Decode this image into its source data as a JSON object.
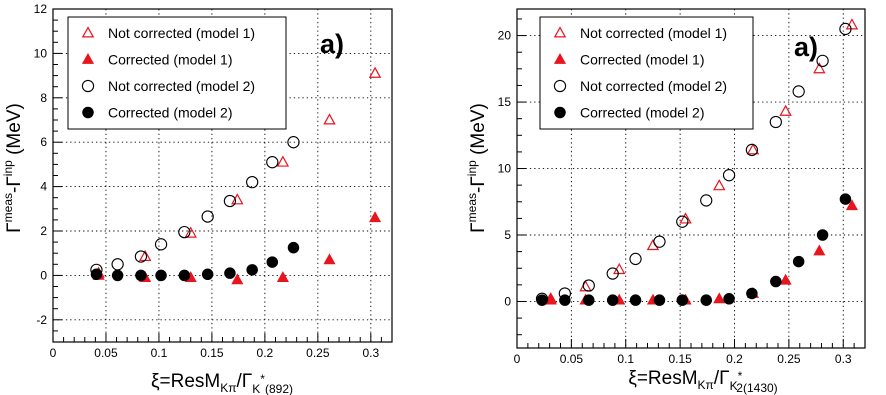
{
  "chart_data": [
    {
      "type": "scatter",
      "panel_label": "a)",
      "xlabel": {
        "main": "ξ=ResM",
        "sub1": "Kπ",
        "slash": "/Γ",
        "sub2": "K",
        "sup2": "*",
        "sub3": "(892)"
      },
      "ylabel": {
        "base": "Γ",
        "sup1": "meas",
        "dash": "-Γ",
        "sup2": "inp",
        "unit": " (MeV)"
      },
      "xlim": [
        0,
        0.32
      ],
      "ylim": [
        -3,
        12
      ],
      "xticks": [
        0,
        0.05,
        0.1,
        0.15,
        0.2,
        0.25,
        0.3
      ],
      "xtick_labels": [
        "0",
        "0.05",
        "0.1",
        "0.15",
        "0.2",
        "0.25",
        "0.3"
      ],
      "yticks": [
        -2,
        0,
        2,
        4,
        6,
        8,
        10,
        12
      ],
      "ytick_labels": [
        "-2",
        "0",
        "2",
        "4",
        "6",
        "8",
        "10",
        "12"
      ],
      "grid": true,
      "legend_position": "top-left",
      "series": [
        {
          "name": "Not corrected (model 1)",
          "marker": "open-triangle",
          "color": "#e8141e",
          "x": [
            0.043,
            0.087,
            0.13,
            0.174,
            0.217,
            0.261,
            0.304
          ],
          "y": [
            0.1,
            0.85,
            1.9,
            3.4,
            5.1,
            7.0,
            9.1
          ]
        },
        {
          "name": "Corrected (model 1)",
          "marker": "filled-triangle",
          "color": "#e8141e",
          "x": [
            0.043,
            0.087,
            0.13,
            0.174,
            0.217,
            0.261,
            0.304
          ],
          "y": [
            0.0,
            -0.1,
            -0.1,
            -0.2,
            -0.1,
            0.7,
            2.6
          ]
        },
        {
          "name": "Not corrected (model 2)",
          "marker": "open-circle",
          "color": "#000000",
          "x": [
            0.041,
            0.061,
            0.083,
            0.102,
            0.124,
            0.146,
            0.167,
            0.188,
            0.207,
            0.227
          ],
          "y": [
            0.25,
            0.5,
            0.85,
            1.4,
            1.95,
            2.65,
            3.35,
            4.2,
            5.1,
            6.0
          ]
        },
        {
          "name": "Corrected (model 2)",
          "marker": "filled-circle",
          "color": "#000000",
          "x": [
            0.041,
            0.061,
            0.083,
            0.102,
            0.124,
            0.146,
            0.167,
            0.188,
            0.207,
            0.227
          ],
          "y": [
            0.05,
            0.0,
            0.0,
            0.0,
            0.0,
            0.05,
            0.1,
            0.25,
            0.6,
            1.25
          ]
        }
      ]
    },
    {
      "type": "scatter",
      "panel_label": "a)",
      "xlabel": {
        "main": "ξ=ResM",
        "sub1": "Kπ",
        "slash": "/Γ",
        "sub2": "K",
        "sup2": "*",
        "sub2b": "2",
        "sub3": "(1430)"
      },
      "ylabel": {
        "base": "Γ",
        "sup1": "meas",
        "dash": "-Γ",
        "sup2": "inp",
        "unit": " (MeV)"
      },
      "xlim": [
        0,
        0.32
      ],
      "ylim": [
        -3.5,
        22
      ],
      "xticks": [
        0,
        0.05,
        0.1,
        0.15,
        0.2,
        0.25,
        0.3
      ],
      "xtick_labels": [
        "0",
        "0.05",
        "0.1",
        "0.15",
        "0.2",
        "0.25",
        "0.3"
      ],
      "yticks": [
        0,
        5,
        10,
        15,
        20
      ],
      "ytick_labels": [
        "0",
        "5",
        "10",
        "15",
        "20"
      ],
      "grid": true,
      "legend_position": "top-left",
      "series": [
        {
          "name": "Not corrected (model 1)",
          "marker": "open-triangle",
          "color": "#e8141e",
          "x": [
            0.031,
            0.063,
            0.094,
            0.125,
            0.155,
            0.186,
            0.217,
            0.247,
            0.278,
            0.308
          ],
          "y": [
            0.2,
            1.1,
            2.4,
            4.2,
            6.2,
            8.7,
            11.4,
            14.3,
            17.5,
            20.8
          ]
        },
        {
          "name": "Corrected (model 1)",
          "marker": "filled-triangle",
          "color": "#e8141e",
          "x": [
            0.031,
            0.063,
            0.094,
            0.125,
            0.155,
            0.186,
            0.217,
            0.247,
            0.278,
            0.308
          ],
          "y": [
            0.1,
            0.1,
            0.1,
            0.1,
            0.1,
            0.2,
            0.6,
            1.6,
            3.8,
            7.2
          ]
        },
        {
          "name": "Not corrected (model 2)",
          "marker": "open-circle",
          "color": "#000000",
          "x": [
            0.023,
            0.044,
            0.066,
            0.088,
            0.109,
            0.131,
            0.152,
            0.174,
            0.195,
            0.216,
            0.238,
            0.259,
            0.281,
            0.302
          ],
          "y": [
            0.2,
            0.6,
            1.2,
            2.1,
            3.2,
            4.5,
            6.0,
            7.6,
            9.5,
            11.4,
            13.5,
            15.8,
            18.1,
            20.5
          ]
        },
        {
          "name": "Corrected (model 2)",
          "marker": "filled-circle",
          "color": "#000000",
          "x": [
            0.023,
            0.044,
            0.066,
            0.088,
            0.109,
            0.131,
            0.152,
            0.174,
            0.195,
            0.216,
            0.238,
            0.259,
            0.281,
            0.302
          ],
          "y": [
            0.1,
            0.1,
            0.1,
            0.1,
            0.1,
            0.1,
            0.1,
            0.1,
            0.2,
            0.6,
            1.5,
            3.0,
            5.0,
            7.7
          ]
        }
      ]
    }
  ]
}
